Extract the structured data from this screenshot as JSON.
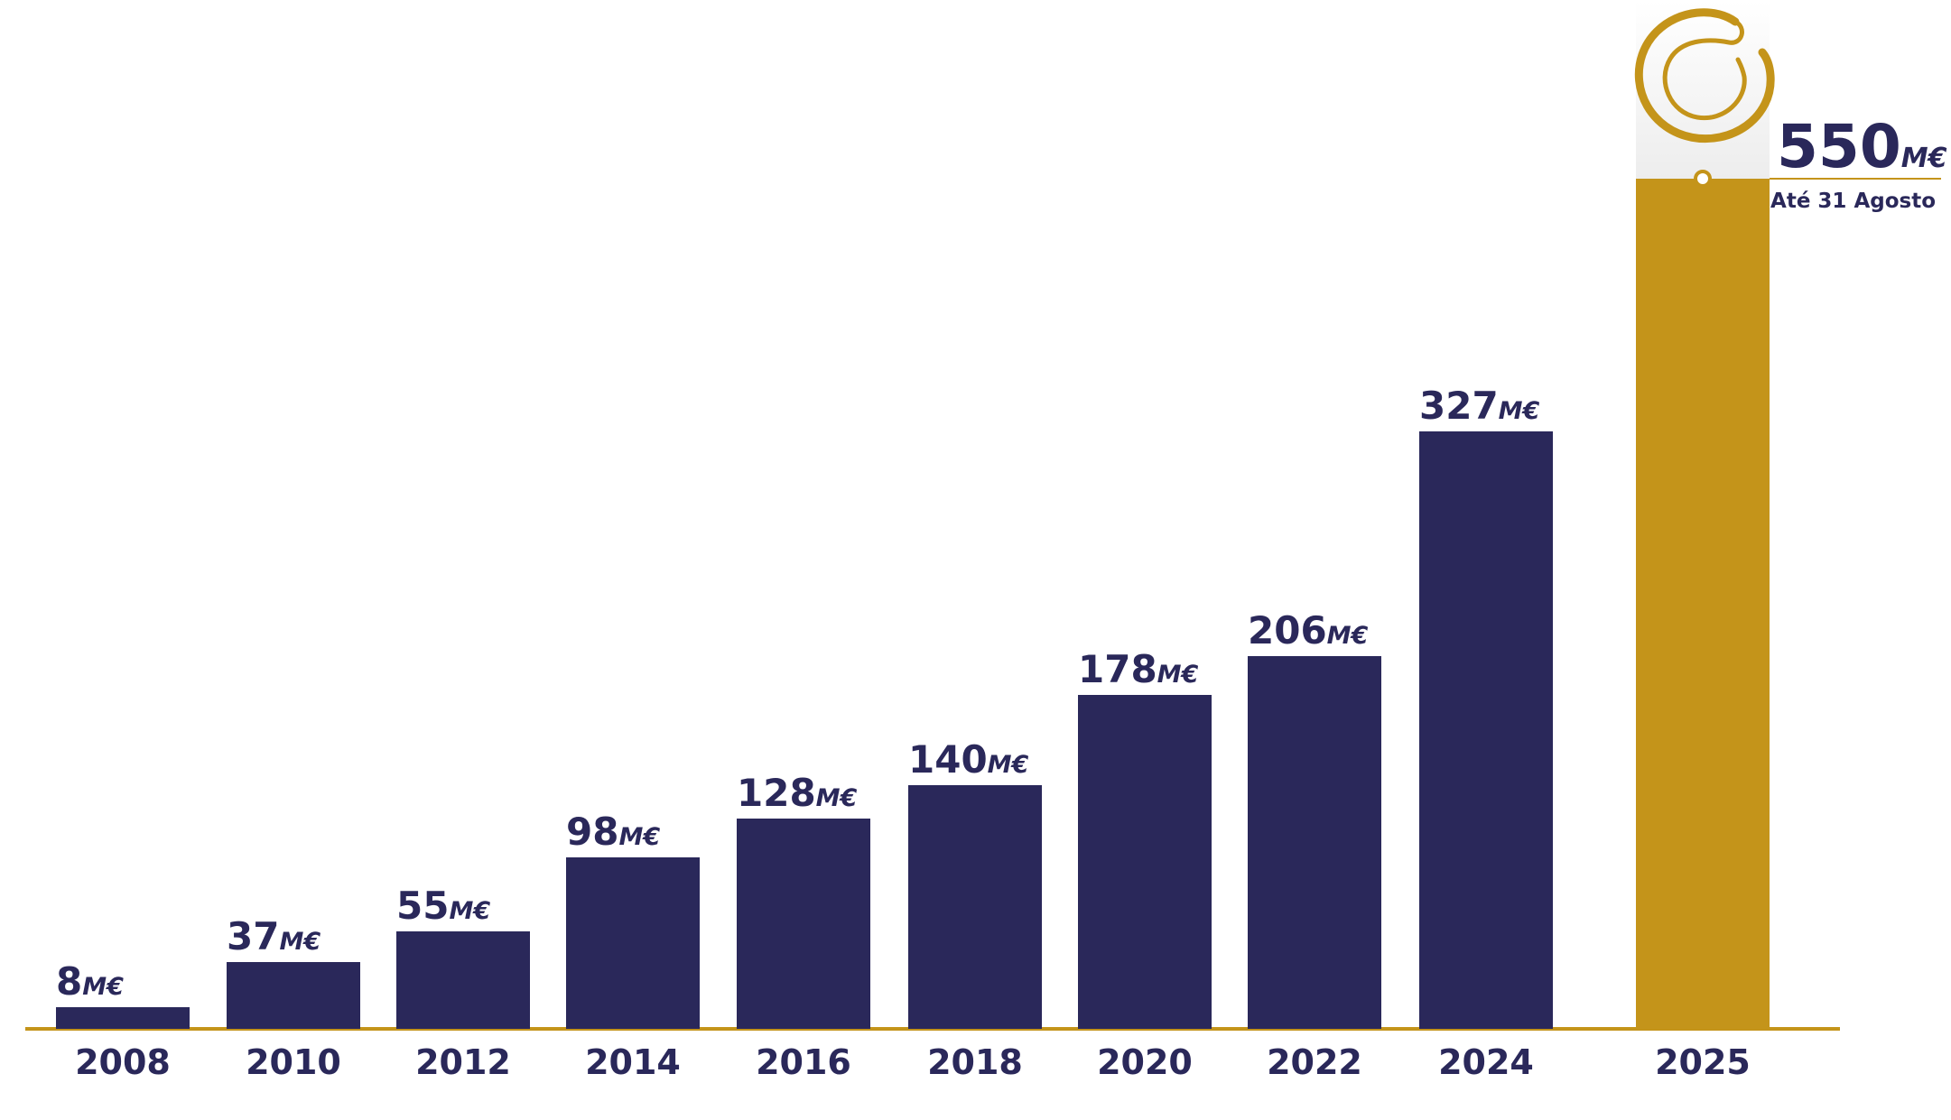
{
  "chart_data": {
    "type": "bar",
    "categories": [
      "2008",
      "2010",
      "2012",
      "2014",
      "2016",
      "2018",
      "2020",
      "2022",
      "2024",
      "2025"
    ],
    "values": [
      8,
      37,
      55,
      98,
      128,
      140,
      178,
      206,
      327,
      550
    ],
    "value_labels": [
      "8",
      "37",
      "55",
      "98",
      "128",
      "140",
      "178",
      "206",
      "327",
      "550"
    ],
    "unit": "M€",
    "highlight": {
      "category": "2025",
      "note": "Até 31 Agosto"
    },
    "title": "",
    "xlabel": "",
    "ylabel": "",
    "grid": false,
    "colors": {
      "bar": "#2a285a",
      "highlight": "#c4941a",
      "axis": "#c4941a",
      "text": "#2a285a"
    }
  },
  "logo": {
    "icon": "gold-spiral-ring-icon"
  }
}
